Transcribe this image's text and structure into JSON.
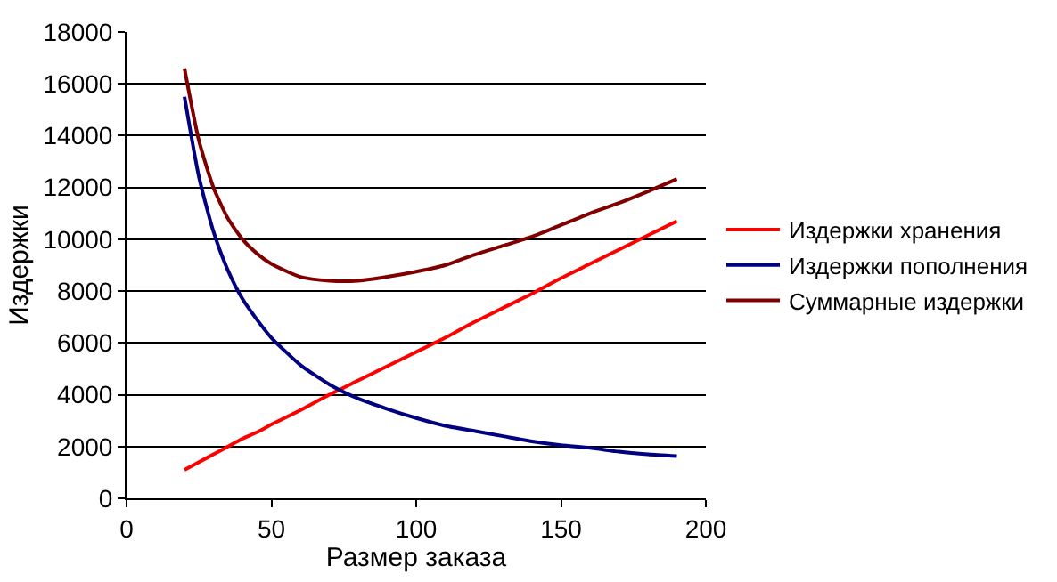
{
  "chart_data": {
    "type": "line",
    "xlabel": "Размер заказа",
    "ylabel": "Издержки",
    "x": [
      20,
      25,
      30,
      35,
      40,
      45,
      50,
      60,
      70,
      80,
      90,
      100,
      110,
      120,
      130,
      140,
      150,
      160,
      170,
      180,
      190
    ],
    "series": [
      {
        "name": "Издержки хранения",
        "color": "#ff0000",
        "values": [
          1100,
          1400,
          1700,
          2000,
          2300,
          2550,
          2850,
          3400,
          4000,
          4550,
          5100,
          5650,
          6200,
          6800,
          7350,
          7900,
          8500,
          9050,
          9600,
          10150,
          10700
        ]
      },
      {
        "name": "Издержки пополнения",
        "color": "#000080",
        "values": [
          15500,
          12400,
          10300,
          8800,
          7700,
          6900,
          6200,
          5150,
          4400,
          3850,
          3450,
          3100,
          2800,
          2600,
          2400,
          2200,
          2050,
          1950,
          1800,
          1700,
          1630
        ]
      },
      {
        "name": "Суммарные издержки",
        "color": "#800000",
        "values": [
          16600,
          13800,
          12000,
          10800,
          10000,
          9450,
          9050,
          8550,
          8400,
          8400,
          8550,
          8750,
          9000,
          9400,
          9750,
          10100,
          10550,
          11000,
          11400,
          11850,
          12330
        ]
      }
    ],
    "xlim": [
      0,
      200
    ],
    "xticks": [
      0,
      50,
      100,
      150,
      200
    ],
    "ylim": [
      0,
      18000
    ],
    "yticks": [
      0,
      2000,
      4000,
      6000,
      8000,
      10000,
      12000,
      14000,
      16000,
      18000
    ],
    "grid": "y",
    "legend": "right",
    "marker": "none",
    "line_style": "solid"
  }
}
